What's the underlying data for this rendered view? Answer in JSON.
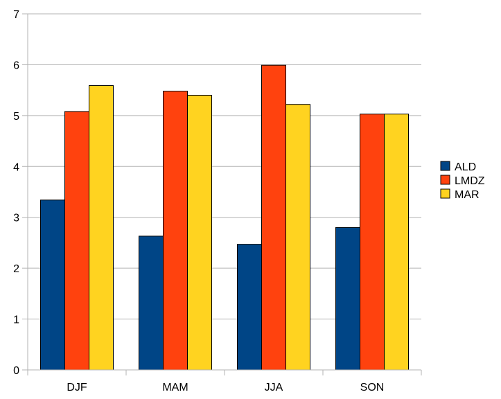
{
  "chart_data": {
    "type": "bar",
    "categories": [
      "DJF",
      "MAM",
      "JJA",
      "SON"
    ],
    "series": [
      {
        "name": "ALD",
        "values": [
          3.34,
          2.63,
          2.47,
          2.8
        ],
        "color": "#004586"
      },
      {
        "name": "LMDZ",
        "values": [
          5.08,
          5.48,
          5.99,
          5.03
        ],
        "color": "#ff420e"
      },
      {
        "name": "MAR",
        "values": [
          5.59,
          5.4,
          5.22,
          5.03
        ],
        "color": "#ffd320"
      }
    ],
    "ylim": [
      0,
      7
    ],
    "yticks": [
      "0",
      "1",
      "2",
      "3",
      "4",
      "5",
      "6",
      "7"
    ],
    "grid": true,
    "legend": "right"
  }
}
